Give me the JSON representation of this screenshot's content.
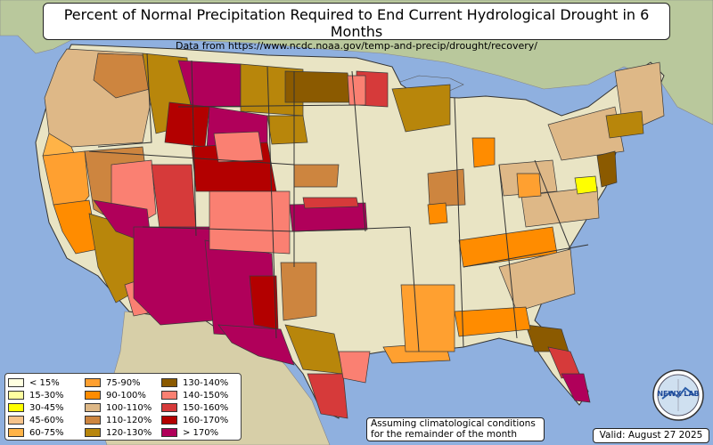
{
  "title": "Percent of Normal Precipitation Required to End Current Hydrological Drought in 6 Months",
  "subtitle": "Data from https://www.ncdc.noaa.gov/temp-and-precip/drought/recovery/",
  "legend": [
    {
      "label": "< 15%",
      "color": "#ffffe0"
    },
    {
      "label": "15-30%",
      "color": "#ffffa0"
    },
    {
      "label": "30-45%",
      "color": "#ffff00"
    },
    {
      "label": "45-60%",
      "color": "#f6c38a"
    },
    {
      "label": "60-75%",
      "color": "#ffb347"
    },
    {
      "label": "75-90%",
      "color": "#ffa030"
    },
    {
      "label": "90-100%",
      "color": "#ff8c00"
    },
    {
      "label": "100-110%",
      "color": "#deb887"
    },
    {
      "label": "110-120%",
      "color": "#cd853f"
    },
    {
      "label": "120-130%",
      "color": "#b8860b"
    },
    {
      "label": "130-140%",
      "color": "#8b5a00"
    },
    {
      "label": "140-150%",
      "color": "#fa8072"
    },
    {
      "label": "150-160%",
      "color": "#d63a3a"
    },
    {
      "label": "160-170%",
      "color": "#b30000"
    },
    {
      "label": "> 170%",
      "color": "#b0005a"
    }
  ],
  "note": {
    "line1": "Assuming climatological conditions",
    "line2": "for the remainder of the month"
  },
  "valid": "Valid: August 27 2025",
  "logo_text": "NEWX LAB",
  "colors": {
    "ocean": "#8fb0df",
    "land": "#e9e4c4",
    "state_border": "#444444"
  }
}
